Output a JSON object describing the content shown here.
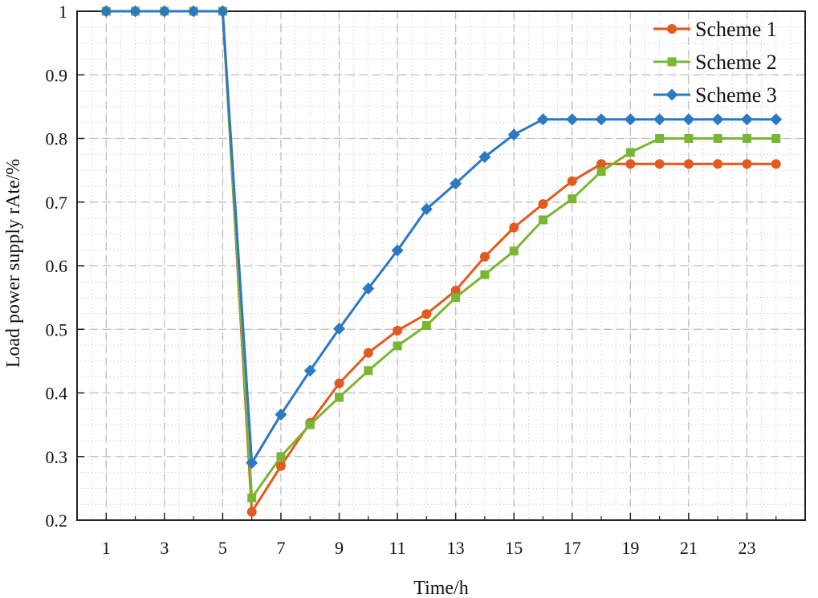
{
  "chart_data": {
    "type": "line",
    "title": "",
    "xlabel": "Time/h",
    "ylabel": "Load power supply rAte/%",
    "xlim": [
      0,
      25
    ],
    "ylim": [
      0.2,
      1.0
    ],
    "x_ticks": [
      1,
      3,
      5,
      7,
      9,
      11,
      13,
      15,
      17,
      19,
      21,
      23
    ],
    "y_ticks": [
      0.2,
      0.3,
      0.4,
      0.5,
      0.6,
      0.7,
      0.8,
      0.9,
      1.0
    ],
    "y_tick_labels": [
      "0.2",
      "0.3",
      "0.4",
      "0.5",
      "0.6",
      "0.7",
      "0.8",
      "0.9",
      "1"
    ],
    "grid": true,
    "legend_position": "top-right",
    "x": [
      1,
      2,
      3,
      4,
      5,
      6,
      7,
      8,
      9,
      10,
      11,
      12,
      13,
      14,
      15,
      16,
      17,
      18,
      19,
      20,
      21,
      22,
      23,
      24
    ],
    "series": [
      {
        "name": "Scheme 1",
        "color": "#e15a1e",
        "marker": "circle",
        "values": [
          1,
          1,
          1,
          1,
          1,
          0.213,
          0.285,
          0.353,
          0.415,
          0.463,
          0.498,
          0.524,
          0.561,
          0.614,
          0.66,
          0.697,
          0.733,
          0.76,
          0.76,
          0.76,
          0.76,
          0.76,
          0.76,
          0.76
        ]
      },
      {
        "name": "Scheme 2",
        "color": "#7ab632",
        "marker": "square",
        "values": [
          1,
          1,
          1,
          1,
          1,
          0.235,
          0.3,
          0.35,
          0.393,
          0.435,
          0.474,
          0.506,
          0.55,
          0.586,
          0.623,
          0.672,
          0.705,
          0.748,
          0.778,
          0.8,
          0.8,
          0.8,
          0.8,
          0.8
        ]
      },
      {
        "name": "Scheme 3",
        "color": "#2a79c2",
        "marker": "diamond",
        "values": [
          1,
          1,
          1,
          1,
          1,
          0.29,
          0.366,
          0.435,
          0.501,
          0.564,
          0.624,
          0.689,
          0.729,
          0.771,
          0.806,
          0.83,
          0.83,
          0.83,
          0.83,
          0.83,
          0.83,
          0.83,
          0.83,
          0.83
        ]
      }
    ]
  }
}
